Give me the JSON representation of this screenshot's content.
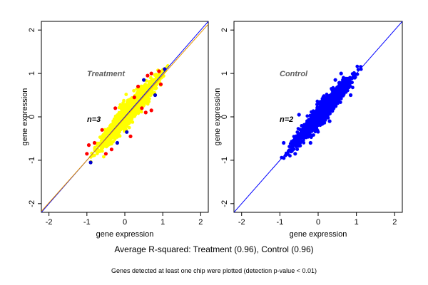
{
  "colors": {
    "treatment": "#ffff00",
    "treatment_outlier_red": "#ff0000",
    "treatment_outlier_blue": "#0000cc",
    "control": "#0000ff",
    "fit_line_orange": "#e69500",
    "diag_line": "#0000ff"
  },
  "caption": "Average R-squared: Treatment (0.96), Control (0.96)",
  "subcaption": "Genes detected at least one chip were plotted (detection p-value < 0.01)",
  "chart_data": [
    {
      "type": "scatter",
      "panel": "Treatment",
      "title": "Treatment",
      "annotation": "n=3",
      "xlabel": "gene expression",
      "ylabel": "gene expression",
      "xlim": [
        -2.2,
        2.2
      ],
      "ylim": [
        -2.2,
        2.2
      ],
      "xticks": [
        -2,
        -1,
        0,
        1,
        2
      ],
      "yticks": [
        -2,
        -1,
        0,
        1,
        2
      ],
      "point_cloud": {
        "x_range": [
          -1.05,
          1.25
        ],
        "slope": 1.0,
        "spread": 0.13,
        "color": "#ffff00"
      },
      "lines": [
        {
          "name": "identity",
          "slope": 1.0,
          "intercept": 0.0,
          "color": "#0000ff"
        },
        {
          "name": "fit",
          "slope": 0.98,
          "intercept": -0.02,
          "color": "#e69500"
        }
      ],
      "outliers": [
        {
          "x": -1.0,
          "y": -0.85,
          "color": "#ff0000"
        },
        {
          "x": -0.95,
          "y": -0.65,
          "color": "#ff0000"
        },
        {
          "x": -0.9,
          "y": -1.05,
          "color": "#0000cc"
        },
        {
          "x": -0.8,
          "y": -0.6,
          "color": "#ff0000"
        },
        {
          "x": -0.6,
          "y": -0.3,
          "color": "#ff0000"
        },
        {
          "x": -0.5,
          "y": -0.85,
          "color": "#ff0000"
        },
        {
          "x": -0.35,
          "y": -0.75,
          "color": "#ff0000"
        },
        {
          "x": -0.2,
          "y": -0.6,
          "color": "#0000cc"
        },
        {
          "x": 0.05,
          "y": -0.35,
          "color": "#0000cc"
        },
        {
          "x": 0.15,
          "y": -0.45,
          "color": "#ff0000"
        },
        {
          "x": 0.25,
          "y": 0.45,
          "color": "#ff0000"
        },
        {
          "x": 0.45,
          "y": 0.2,
          "color": "#ff0000"
        },
        {
          "x": 0.55,
          "y": 0.1,
          "color": "#ff0000"
        },
        {
          "x": 0.7,
          "y": 0.15,
          "color": "#ff0000"
        },
        {
          "x": 0.5,
          "y": 0.85,
          "color": "#0000cc"
        },
        {
          "x": 0.35,
          "y": 0.7,
          "color": "#ff0000"
        },
        {
          "x": 0.6,
          "y": 0.95,
          "color": "#ff0000"
        },
        {
          "x": 0.9,
          "y": 1.05,
          "color": "#ff0000"
        },
        {
          "x": 1.05,
          "y": 1.1,
          "color": "#0000cc"
        },
        {
          "x": 0.8,
          "y": 0.5,
          "color": "#0000cc"
        },
        {
          "x": 0.95,
          "y": 0.75,
          "color": "#ff0000"
        },
        {
          "x": -0.25,
          "y": 0.2,
          "color": "#ff0000"
        },
        {
          "x": 0.7,
          "y": 1.0,
          "color": "#ff0000"
        }
      ]
    },
    {
      "type": "scatter",
      "panel": "Control",
      "title": "Control",
      "annotation": "n=2",
      "xlabel": "gene expression",
      "ylabel": "gene expression",
      "xlim": [
        -2.2,
        2.2
      ],
      "ylim": [
        -2.2,
        2.2
      ],
      "xticks": [
        -2,
        -1,
        0,
        1,
        2
      ],
      "yticks": [
        -2,
        -1,
        0,
        1,
        2
      ],
      "point_cloud": {
        "x_range": [
          -1.05,
          1.25
        ],
        "slope": 1.0,
        "spread": 0.12,
        "color": "#0000ff"
      },
      "lines": [
        {
          "name": "identity",
          "slope": 1.0,
          "intercept": 0.0,
          "color": "#0000ff"
        }
      ],
      "outliers": [
        {
          "x": -0.9,
          "y": -0.6,
          "color": "#0000ff"
        },
        {
          "x": -0.6,
          "y": -0.85,
          "color": "#0000ff"
        },
        {
          "x": -0.5,
          "y": 0.05,
          "color": "#0000ff"
        },
        {
          "x": -0.2,
          "y": -0.6,
          "color": "#0000ff"
        },
        {
          "x": 0.3,
          "y": -0.1,
          "color": "#0000ff"
        },
        {
          "x": 0.45,
          "y": 0.85,
          "color": "#0000ff"
        },
        {
          "x": 0.85,
          "y": 0.5,
          "color": "#0000ff"
        },
        {
          "x": 0.6,
          "y": 1.0,
          "color": "#0000ff"
        }
      ]
    }
  ]
}
